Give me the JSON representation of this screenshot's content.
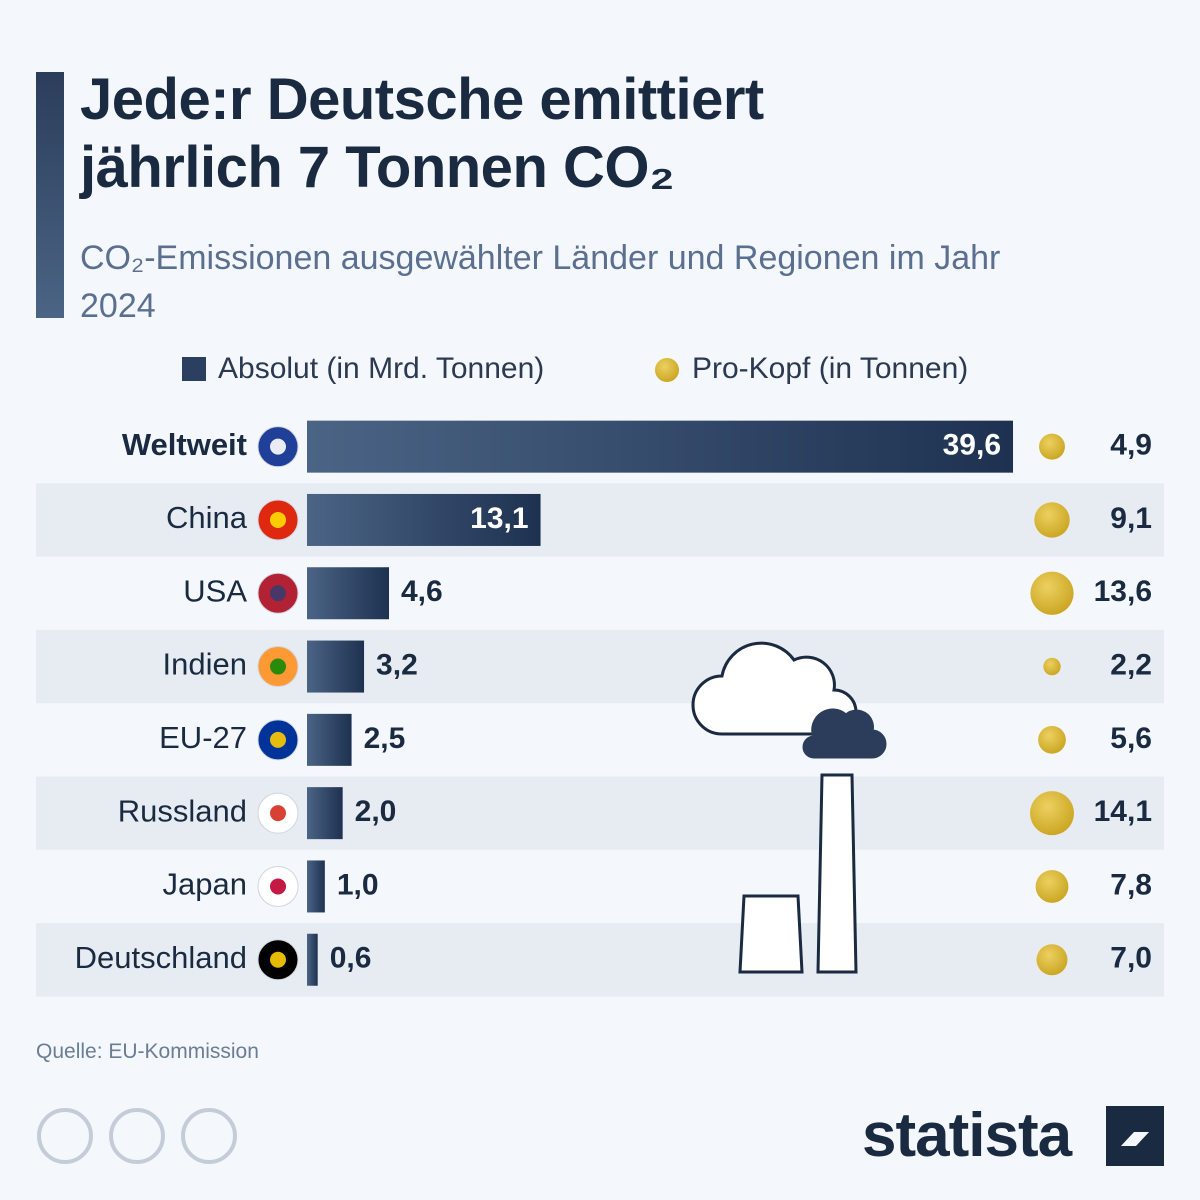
{
  "chart_data": {
    "type": "bar",
    "title": "Jede:r Deutsche emittiert jährlich 7 Tonnen CO₂",
    "subtitle": "CO₂-Emissionen ausgewählter Länder und Regionen im Jahr 2024",
    "categories": [
      "Weltweit",
      "China",
      "USA",
      "Indien",
      "EU-27",
      "Russland",
      "Japan",
      "Deutschland"
    ],
    "series": [
      {
        "name": "Absolut (in Mrd. Tonnen)",
        "color": "#2b4060",
        "values": [
          39.6,
          13.1,
          4.6,
          3.2,
          2.5,
          2.0,
          1.0,
          0.6
        ],
        "value_labels": [
          "39,6",
          "13,1",
          "4,6",
          "3,2",
          "2,5",
          "2,0",
          "1,0",
          "0,6"
        ]
      },
      {
        "name": "Pro-Kopf (in Tonnen)",
        "color": "#d9b52c",
        "marker": "bubble",
        "values": [
          4.9,
          9.1,
          13.6,
          2.2,
          5.6,
          14.1,
          7.8,
          7.0
        ],
        "value_labels": [
          "4,9",
          "9,1",
          "13,6",
          "2,2",
          "5,6",
          "14,1",
          "7,8",
          "7,0"
        ]
      }
    ],
    "source": "Quelle: EU-Kommission",
    "brand": "statista"
  }
}
